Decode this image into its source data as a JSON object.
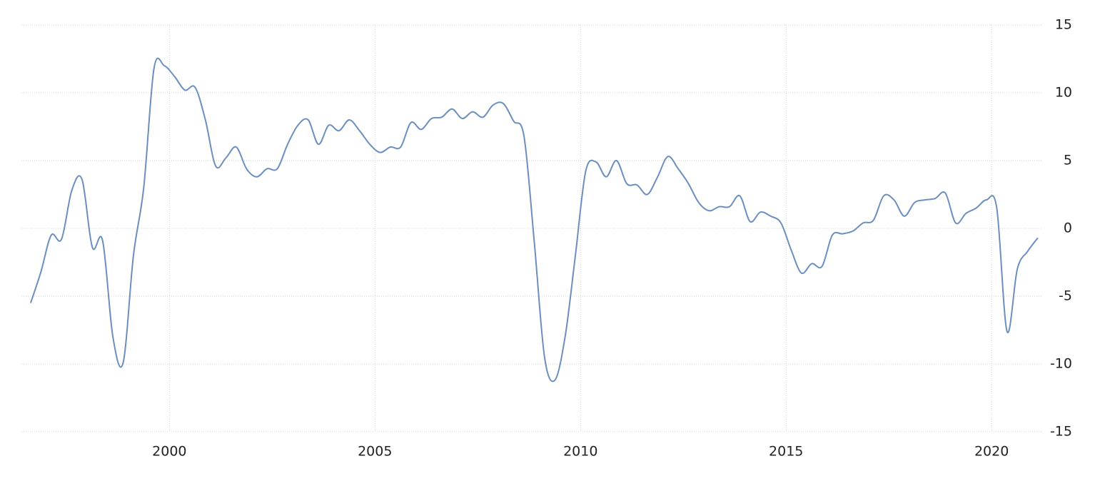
{
  "chart_data": {
    "type": "line",
    "x": [
      1996.625,
      1996.875,
      1997.125,
      1997.375,
      1997.625,
      1997.875,
      1998.125,
      1998.375,
      1998.625,
      1998.875,
      1999.125,
      1999.375,
      1999.625,
      1999.875,
      2000.125,
      2000.375,
      2000.625,
      2000.875,
      2001.125,
      2001.375,
      2001.625,
      2001.875,
      2002.125,
      2002.375,
      2002.625,
      2002.875,
      2003.125,
      2003.375,
      2003.625,
      2003.875,
      2004.125,
      2004.375,
      2004.625,
      2004.875,
      2005.125,
      2005.375,
      2005.625,
      2005.875,
      2006.125,
      2006.375,
      2006.625,
      2006.875,
      2007.125,
      2007.375,
      2007.625,
      2007.875,
      2008.125,
      2008.375,
      2008.625,
      2008.875,
      2009.125,
      2009.375,
      2009.625,
      2009.875,
      2010.125,
      2010.375,
      2010.625,
      2010.875,
      2011.125,
      2011.375,
      2011.625,
      2011.875,
      2012.125,
      2012.375,
      2012.625,
      2012.875,
      2013.125,
      2013.375,
      2013.625,
      2013.875,
      2014.125,
      2014.375,
      2014.625,
      2014.875,
      2015.125,
      2015.375,
      2015.625,
      2015.875,
      2016.125,
      2016.375,
      2016.625,
      2016.875,
      2017.125,
      2017.375,
      2017.625,
      2017.875,
      2018.125,
      2018.375,
      2018.625,
      2018.875,
      2019.125,
      2019.375,
      2019.625,
      2019.875,
      2020.125,
      2020.375,
      2020.625,
      2020.875,
      2021.125
    ],
    "series": [
      {
        "color": "#6b8fbf",
        "values": [
          -5.5,
          -3.2,
          -0.5,
          -0.8,
          2.8,
          3.6,
          -1.4,
          -0.9,
          -8,
          -9.9,
          -2,
          3,
          11.8,
          12,
          11.2,
          10.2,
          10.4,
          8,
          4.6,
          5.2,
          6,
          4.4,
          3.8,
          4.4,
          4.4,
          6.2,
          7.6,
          8,
          6.2,
          7.6,
          7.2,
          8,
          7.2,
          6.2,
          5.6,
          6,
          6,
          7.8,
          7.3,
          8.1,
          8.2,
          8.8,
          8.1,
          8.6,
          8.2,
          9.1,
          9.2,
          7.9,
          6.8,
          -1,
          -9.5,
          -11.2,
          -8,
          -2,
          4.2,
          4.9,
          3.8,
          5,
          3.3,
          3.2,
          2.5,
          3.8,
          5.3,
          4.4,
          3.3,
          1.9,
          1.3,
          1.6,
          1.6,
          2.4,
          0.5,
          1.2,
          0.9,
          0.4,
          -1.6,
          -3.3,
          -2.6,
          -2.8,
          -0.5,
          -0.4,
          -0.2,
          0.4,
          0.6,
          2.4,
          2.1,
          0.9,
          1.9,
          2.1,
          2.2,
          2.6,
          0.4,
          1.1,
          1.5,
          2.1,
          1.5,
          -7.6,
          -3,
          -1.7,
          -0.7
        ]
      }
    ],
    "xlim": [
      1996.4,
      2021.23
    ],
    "xticks": [
      2000,
      2005,
      2010,
      2015,
      2020
    ],
    "ylim": [
      -15,
      15
    ],
    "yticks": [
      15,
      10,
      5,
      0,
      -5,
      -10,
      -15
    ],
    "grid": true
  }
}
